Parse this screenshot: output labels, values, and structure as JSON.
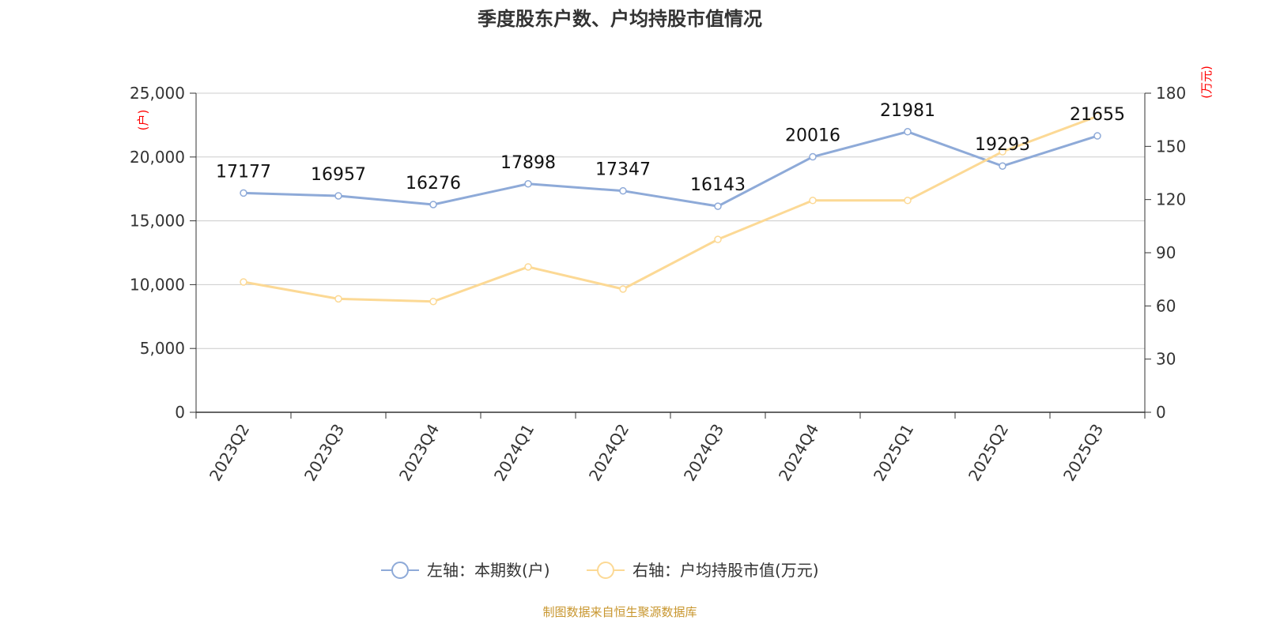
{
  "chart_data": {
    "type": "line",
    "title": "季度股东户数、户均持股市值情况",
    "categories": [
      "2023Q2",
      "2023Q3",
      "2023Q4",
      "2024Q1",
      "2024Q2",
      "2024Q3",
      "2024Q4",
      "2025Q1",
      "2025Q2",
      "2025Q3"
    ],
    "series": [
      {
        "name": "左轴：本期数(户)",
        "axis": "left",
        "color": "#8eaad8",
        "values": [
          17177,
          16957,
          16276,
          17898,
          17347,
          16143,
          20016,
          21981,
          19293,
          21655
        ],
        "labels": [
          "17177",
          "16957",
          "16276",
          "17898",
          "17347",
          "16143",
          "20016",
          "21981",
          "19293",
          "21655"
        ]
      },
      {
        "name": "右轴：户均持股市值(万元)",
        "axis": "right",
        "color": "#fcd995",
        "values": [
          73.5,
          64,
          62.5,
          82,
          69.5,
          97.5,
          119.5,
          119.5,
          147,
          167
        ]
      }
    ],
    "y_left": {
      "label": "(户)",
      "range": [
        0,
        25000
      ],
      "ticks": [
        "0",
        "5,000",
        "10,000",
        "15,000",
        "20,000",
        "25,000"
      ]
    },
    "y_right": {
      "label": "(万元)",
      "range": [
        0,
        180
      ],
      "ticks": [
        "0",
        "30",
        "60",
        "90",
        "120",
        "150",
        "180"
      ]
    },
    "grid": true,
    "legend_position": "bottom",
    "axis_label_color": "#ff0000",
    "text_color": "#333333"
  },
  "footer": {
    "source": "制图数据来自恒生聚源数据库",
    "color": "#c8962e"
  }
}
